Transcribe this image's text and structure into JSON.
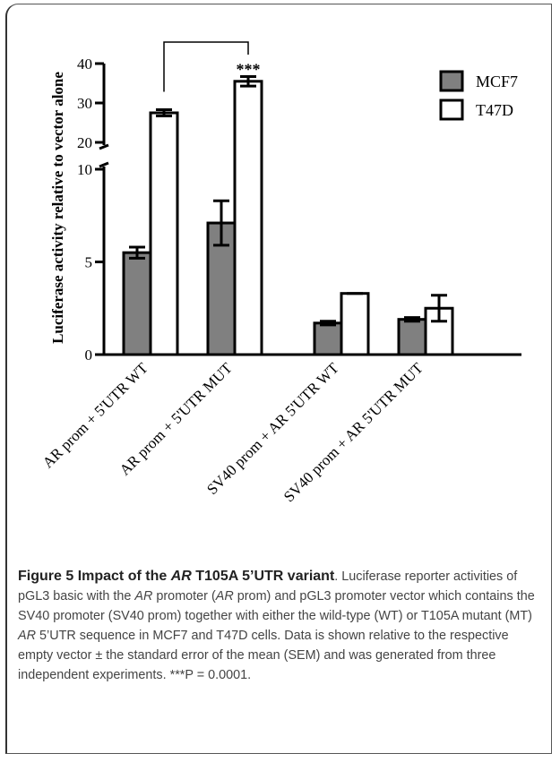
{
  "chart_data": {
    "type": "bar",
    "ylabel": "Luciferase activity relative to vector alone",
    "categories": [
      "AR prom + 5'UTR WT",
      "AR prom + 5'UTR MUT",
      "SV40 prom + AR 5'UTR WT",
      "SV40 prom + AR 5'UTR MUT"
    ],
    "series": [
      {
        "name": "MCF7",
        "color": "#808080",
        "values": [
          5.5,
          7.1,
          1.7,
          1.9
        ],
        "errors": [
          0.3,
          1.2,
          0.1,
          0.1
        ]
      },
      {
        "name": "T47D",
        "color": "#ffffff",
        "values": [
          27.5,
          35.5,
          3.3,
          2.5
        ],
        "errors": [
          0.8,
          1.2,
          0.0,
          0.7
        ]
      }
    ],
    "axis_break": {
      "lower_range": [
        0,
        10
      ],
      "upper_range": [
        20,
        40
      ]
    },
    "yticks_lower": [
      "0",
      "5",
      "10"
    ],
    "yticks_upper": [
      "20",
      "30",
      "40"
    ],
    "legend_position": "top-right",
    "significance": {
      "label": "***",
      "between": [
        "AR prom + 5'UTR WT",
        "AR prom + 5'UTR MUT"
      ],
      "series": "T47D"
    }
  },
  "caption": {
    "figure_label": "Figure 5",
    "title_pre": "Impact of the ",
    "title_italic": "AR",
    "title_post": " T105A 5’UTR variant",
    "body": [
      {
        "t": ". Luciferase reporter activities of pGL3 basic with the ",
        "i": false
      },
      {
        "t": "AR",
        "i": true
      },
      {
        "t": " promoter (",
        "i": false
      },
      {
        "t": "AR",
        "i": true
      },
      {
        "t": " prom) and pGL3 promoter vector which contains the SV40 promoter (SV40 prom) together with either the wild-type (WT) or T105A mutant (MT) ",
        "i": false
      },
      {
        "t": "AR",
        "i": true
      },
      {
        "t": " 5’UTR sequence in MCF7 and T47D cells. Data is shown relative to the respective empty vector ± the standard error of the mean (SEM) and was generated from three independent experiments. ***P = 0.0001.",
        "i": false
      }
    ]
  }
}
